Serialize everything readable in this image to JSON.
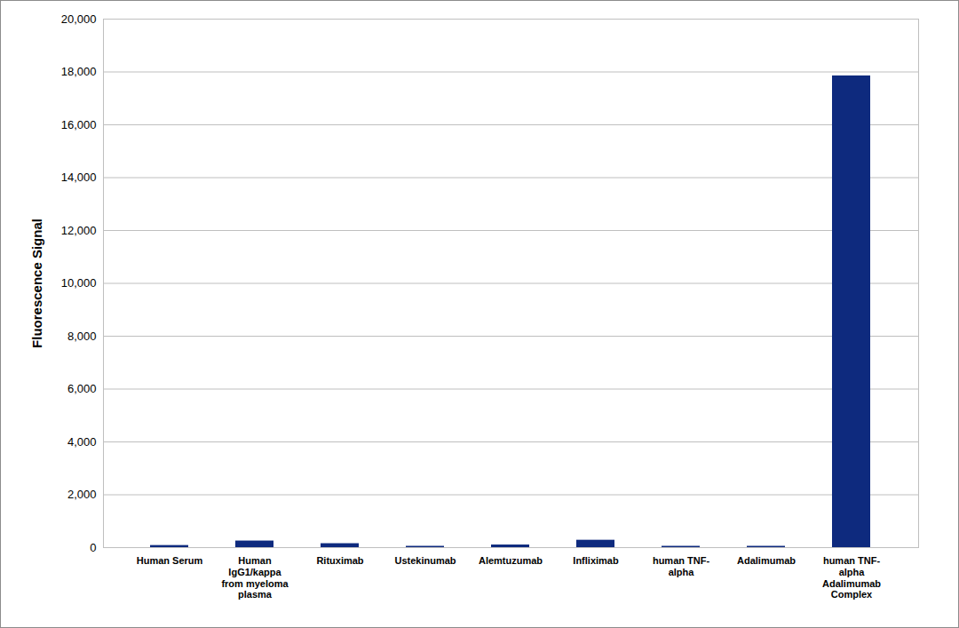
{
  "chart_data": {
    "type": "bar",
    "y_label": "Fluorescence Signal",
    "categories": [
      "Human Serum",
      "Human IgG1/kappa from myeloma plasma",
      "Rituximab",
      "Ustekinumab",
      "Alemtuzumab",
      "Infliximab",
      "human TNF-alpha",
      "Adalimumab",
      "human TNF-alpha Adalimumab Complex"
    ],
    "values": [
      80,
      250,
      150,
      50,
      100,
      280,
      50,
      50,
      17850
    ],
    "color": "#0e2a7e",
    "ylim": [
      0,
      20000
    ],
    "yticks": [
      0,
      {
        "value": 2000,
        "label": "2,000"
      },
      {
        "value": 4000,
        "label": "4,000"
      },
      {
        "value": 6000,
        "label": "6,000"
      },
      {
        "value": 8000,
        "label": "8,000"
      },
      {
        "value": 10000,
        "label": "10,000"
      },
      {
        "value": 12000,
        "label": "12,000"
      },
      {
        "value": 14000,
        "label": "14,000"
      },
      {
        "value": 16000,
        "label": "16,000"
      },
      {
        "value": 18000,
        "label": "18,000"
      },
      {
        "value": 20000,
        "label": "20,000"
      }
    ],
    "grid": true
  }
}
